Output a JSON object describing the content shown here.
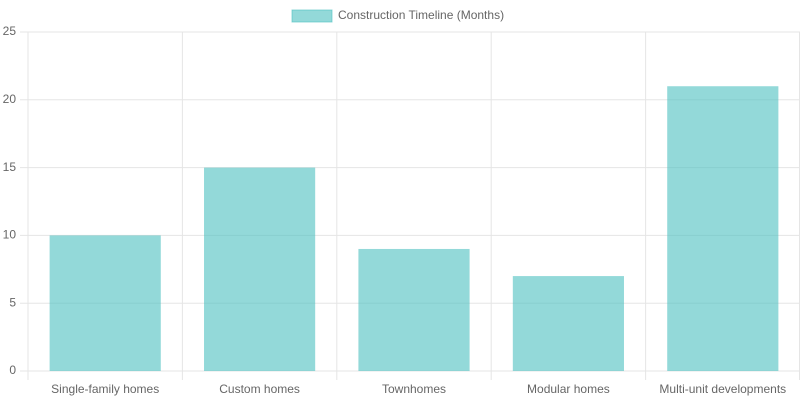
{
  "chart_data": {
    "type": "bar",
    "categories": [
      "Single-family homes",
      "Custom homes",
      "Townhomes",
      "Modular homes",
      "Multi-unit developments"
    ],
    "series": [
      {
        "name": "Construction Timeline (Months)",
        "color": "rgba(75, 192, 192, 0.6)",
        "values": [
          10,
          15,
          9,
          7,
          21
        ]
      }
    ],
    "ylim": [
      0,
      25
    ],
    "yticks": [
      0,
      5,
      10,
      15,
      20,
      25
    ],
    "grid": true,
    "legend": "top"
  }
}
